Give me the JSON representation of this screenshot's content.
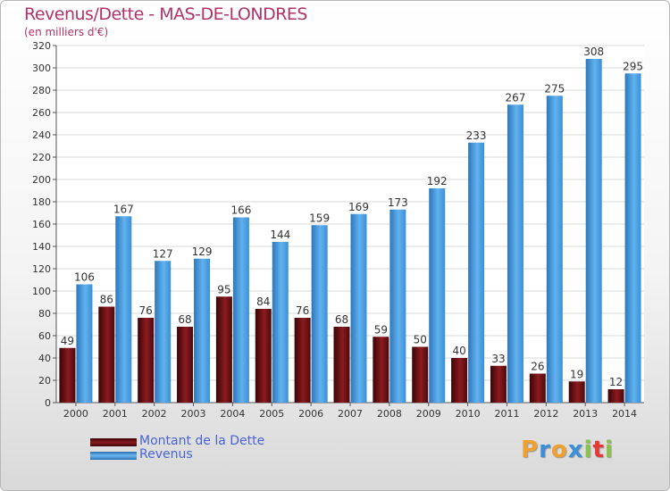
{
  "title": "Revenus/Dette - MAS-DE-LONDRES",
  "subtitle": "(en milliers d'€)",
  "legend": {
    "debt_label": "Montant de la Dette",
    "revenue_label": "Revenus"
  },
  "logo": {
    "letters": [
      "P",
      "r",
      "o",
      "x",
      "i",
      "t",
      "i"
    ],
    "colors": [
      "#f0a030",
      "#3a8fd8",
      "#f0a030",
      "#3a8fd8",
      "#8bc34a",
      "#e53935",
      "#8bc34a"
    ]
  },
  "colors": {
    "debt": "#7a1216",
    "revenue": "#4aa0e6"
  },
  "chart_data": {
    "type": "bar",
    "categories": [
      "2000",
      "2001",
      "2002",
      "2003",
      "2004",
      "2005",
      "2006",
      "2007",
      "2008",
      "2009",
      "2010",
      "2011",
      "2012",
      "2013",
      "2014"
    ],
    "series": [
      {
        "name": "Montant de la Dette",
        "values": [
          49,
          86,
          76,
          68,
          95,
          84,
          76,
          68,
          59,
          50,
          40,
          33,
          26,
          19,
          12
        ]
      },
      {
        "name": "Revenus",
        "values": [
          106,
          167,
          127,
          129,
          166,
          144,
          159,
          169,
          173,
          192,
          233,
          267,
          275,
          308,
          295
        ]
      }
    ],
    "yticks": [
      "0",
      "20",
      "40",
      "60",
      "80",
      "100",
      "120",
      "140",
      "160",
      "180",
      "200",
      "220",
      "240",
      "260",
      "280",
      "300",
      "320"
    ],
    "ylim": [
      0,
      320
    ],
    "grid": true,
    "legend_position": "bottom-left"
  }
}
